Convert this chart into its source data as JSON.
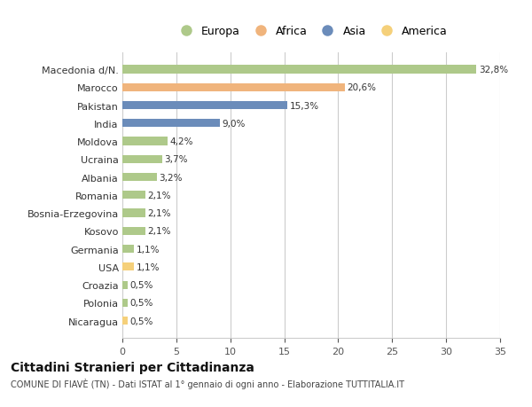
{
  "categories": [
    "Macedonia d/N.",
    "Marocco",
    "Pakistan",
    "India",
    "Moldova",
    "Ucraina",
    "Albania",
    "Romania",
    "Bosnia-Erzegovina",
    "Kosovo",
    "Germania",
    "USA",
    "Croazia",
    "Polonia",
    "Nicaragua"
  ],
  "values": [
    32.8,
    20.6,
    15.3,
    9.0,
    4.2,
    3.7,
    3.2,
    2.1,
    2.1,
    2.1,
    1.1,
    1.1,
    0.5,
    0.5,
    0.5
  ],
  "labels": [
    "32,8%",
    "20,6%",
    "15,3%",
    "9,0%",
    "4,2%",
    "3,7%",
    "3,2%",
    "2,1%",
    "2,1%",
    "2,1%",
    "1,1%",
    "1,1%",
    "0,5%",
    "0,5%",
    "0,5%"
  ],
  "colors": [
    "#aec98a",
    "#f0b47c",
    "#6b8cba",
    "#6b8cba",
    "#aec98a",
    "#aec98a",
    "#aec98a",
    "#aec98a",
    "#aec98a",
    "#aec98a",
    "#aec98a",
    "#f5d07a",
    "#aec98a",
    "#aec98a",
    "#f5d07a"
  ],
  "legend_labels": [
    "Europa",
    "Africa",
    "Asia",
    "America"
  ],
  "legend_colors": [
    "#aec98a",
    "#f0b47c",
    "#6b8cba",
    "#f5d07a"
  ],
  "title": "Cittadini Stranieri per Cittadinanza",
  "subtitle": "COMUNE DI FIAVÈ (TN) - Dati ISTAT al 1° gennaio di ogni anno - Elaborazione TUTTITALIA.IT",
  "xlim": [
    0,
    35
  ],
  "xticks": [
    0,
    5,
    10,
    15,
    20,
    25,
    30,
    35
  ],
  "bg_color": "#ffffff",
  "grid_color": "#cccccc",
  "bar_height": 0.45
}
